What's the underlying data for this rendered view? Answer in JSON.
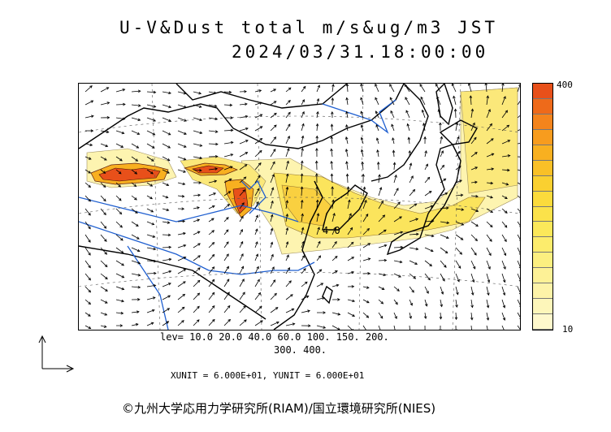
{
  "title": {
    "line1": "U-V&Dust total m/s&ug/m3 JST",
    "line2": "2024/03/31.18:00:00"
  },
  "map": {
    "name": "dust-forecast-map-east-asia",
    "contour_label": "4 0",
    "colors": {
      "high": "#e8501a",
      "mid": "#f8b020",
      "low": "#fbe45c",
      "faint": "#fdf4b0",
      "rivers": "#1f5fd0",
      "coast": "#000000",
      "borders": "#000000"
    }
  },
  "colorbar": {
    "max_label": "400",
    "min_label": "10",
    "colors": [
      "#e8501a",
      "#ee6a1a",
      "#f4841c",
      "#f79c1e",
      "#f8b020",
      "#f9c027",
      "#fad030",
      "#fbdb3c",
      "#fbe24a",
      "#fbe85a",
      "#fcec6c",
      "#fcef80",
      "#fdf196",
      "#fdf3a8",
      "#fdf6ba",
      "#fef8cc"
    ]
  },
  "levels": {
    "line1": "lev= 10.0 20.0 40.0 60.0 100. 150. 200.",
    "line2": "300. 400."
  },
  "units": "XUNIT = 6.000E+01, YUNIT = 6.000E+01",
  "credit": "©九州大学応用力学研究所(RIAM)/国立環境研究所(NIES)"
}
